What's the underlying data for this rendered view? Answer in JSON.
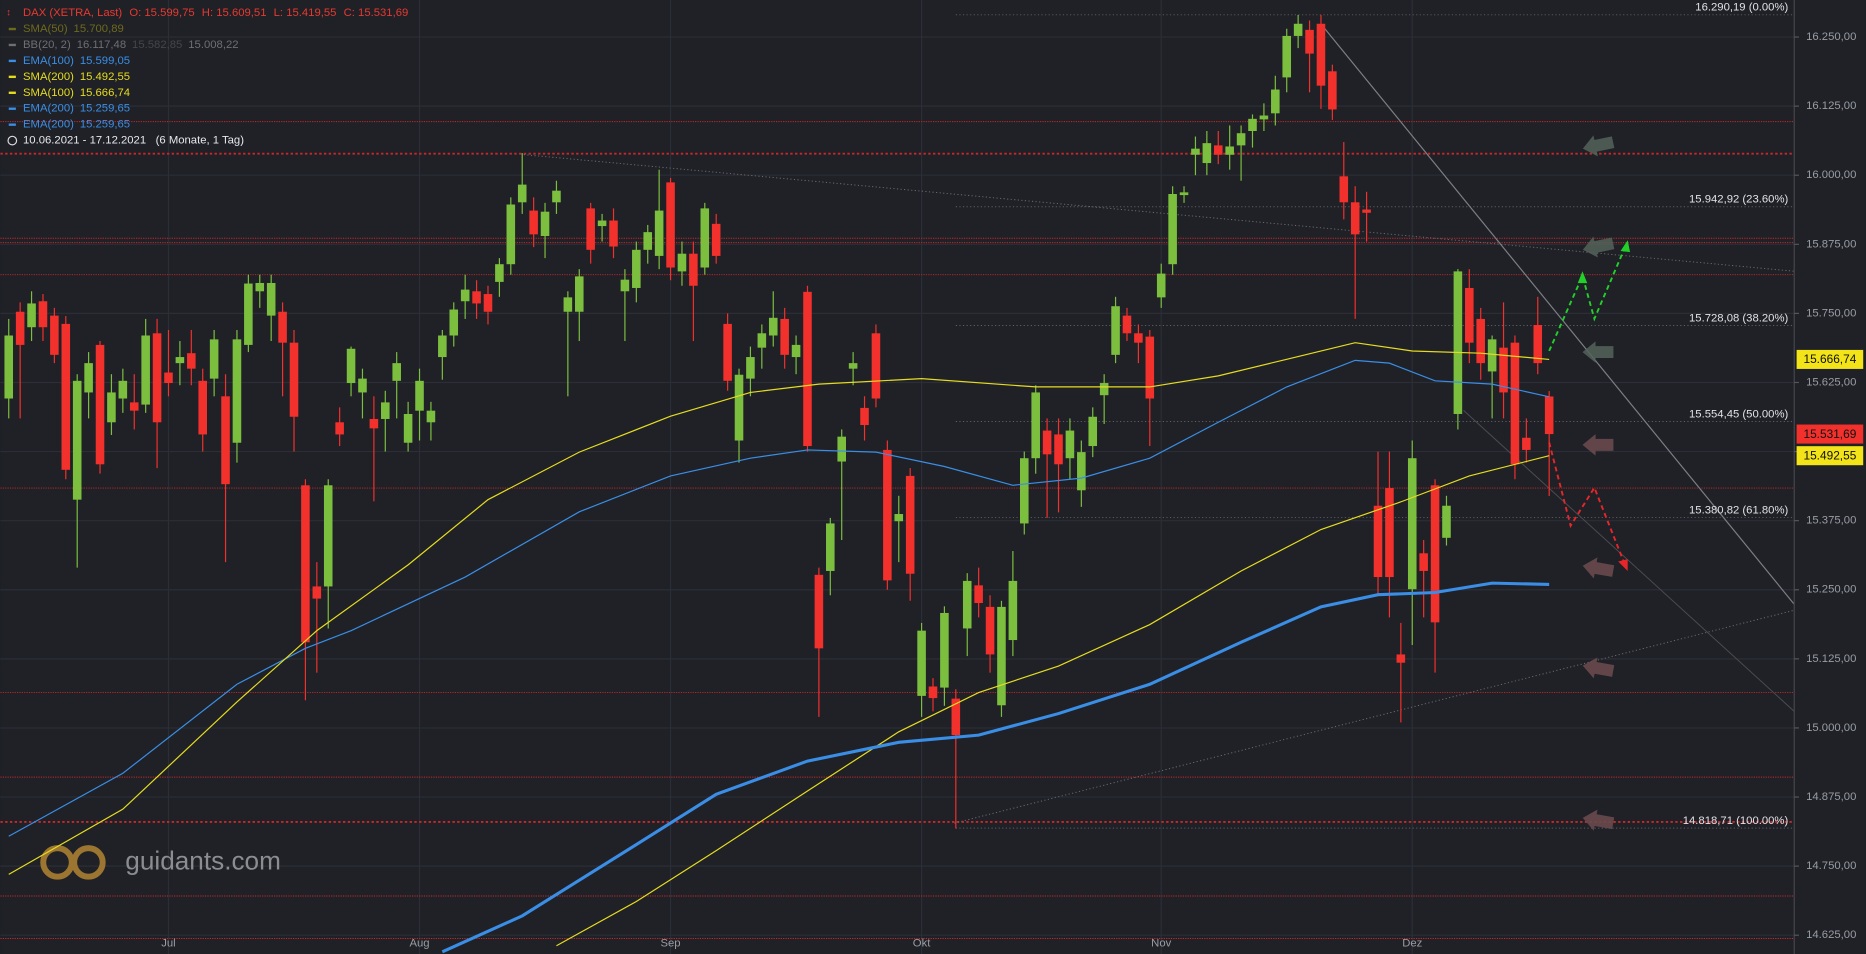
{
  "chart_data": {
    "type": "candlestick",
    "header": {
      "name": "DAX (XETRA, Last)",
      "ohlc_labels": [
        "O: 15.599,75",
        "H: 15.609,51",
        "L: 15.419,55",
        "C: 15.531,69"
      ],
      "color": "#e8392f"
    },
    "date_range": "10.06.2021 - 17.12.2021",
    "period": "(6 Monate, 1 Tag)",
    "logo_text": "guidants.com",
    "up_color": "#7cbf3f",
    "down_color": "#f2302c",
    "ylim": [
      14591,
      16317
    ],
    "yticks": [
      {
        "value": 16250,
        "label": "16.250,00"
      },
      {
        "value": 16125,
        "label": "16.125,00"
      },
      {
        "value": 16000,
        "label": "16.000,00"
      },
      {
        "value": 15875,
        "label": "15.875,00"
      },
      {
        "value": 15750,
        "label": "15.750,00"
      },
      {
        "value": 15625,
        "label": "15.625,00"
      },
      {
        "value": 15500,
        "label": "15.500,00"
      },
      {
        "value": 15375,
        "label": "15.375,00"
      },
      {
        "value": 15250,
        "label": "15.250,00"
      },
      {
        "value": 15125,
        "label": "15.125,00"
      },
      {
        "value": 15000,
        "label": "15.000,00"
      },
      {
        "value": 14875,
        "label": "14.875,00"
      },
      {
        "value": 14750,
        "label": "14.750,00"
      },
      {
        "value": 14625,
        "label": "14.625,00"
      }
    ],
    "grid": true,
    "categories": [
      null,
      null,
      null,
      null,
      null,
      null,
      null,
      null,
      null,
      null,
      null,
      null,
      null,
      null,
      "Jul",
      null,
      null,
      null,
      null,
      null,
      null,
      null,
      null,
      null,
      null,
      null,
      null,
      null,
      null,
      null,
      null,
      null,
      null,
      null,
      null,
      null,
      "Aug",
      null,
      null,
      null,
      null,
      null,
      null,
      null,
      null,
      null,
      null,
      null,
      null,
      null,
      null,
      null,
      null,
      null,
      null,
      null,
      null,
      null,
      "Sep",
      null,
      null,
      null,
      null,
      null,
      null,
      null,
      null,
      null,
      null,
      null,
      null,
      null,
      null,
      null,
      null,
      null,
      null,
      null,
      null,
      null,
      "Okt",
      null,
      null,
      null,
      null,
      null,
      null,
      null,
      null,
      null,
      null,
      null,
      null,
      null,
      null,
      null,
      null,
      null,
      null,
      null,
      null,
      "Nov",
      null,
      null,
      null,
      null,
      null,
      null,
      null,
      null,
      null,
      null,
      null,
      null,
      null,
      null,
      null,
      null,
      null,
      null,
      null,
      null,
      null,
      "Dez",
      null,
      null,
      null,
      null,
      null,
      null,
      null,
      null,
      null,
      null,
      null,
      null
    ],
    "ohlc": [
      [
        15596,
        15740,
        15560,
        15710
      ],
      [
        15753,
        15770,
        15560,
        15693
      ],
      [
        15725,
        15790,
        15700,
        15768
      ],
      [
        15772,
        15785,
        15700,
        15725
      ],
      [
        15746,
        15760,
        15660,
        15675
      ],
      [
        15731,
        15745,
        15450,
        15467
      ],
      [
        15413,
        15640,
        15290,
        15628
      ],
      [
        15607,
        15680,
        15560,
        15660
      ],
      [
        15693,
        15700,
        15460,
        15477
      ],
      [
        15553,
        15640,
        15530,
        15607
      ],
      [
        15596,
        15650,
        15570,
        15628
      ],
      [
        15589,
        15640,
        15540,
        15574
      ],
      [
        15585,
        15740,
        15570,
        15710
      ],
      [
        15714,
        15740,
        15470,
        15553
      ],
      [
        15643,
        15720,
        15600,
        15624
      ],
      [
        15660,
        15700,
        15620,
        15671
      ],
      [
        15678,
        15720,
        15620,
        15650
      ],
      [
        15628,
        15650,
        15500,
        15531
      ],
      [
        15632,
        15720,
        15600,
        15703
      ],
      [
        15600,
        15640,
        15300,
        15441
      ],
      [
        15516,
        15720,
        15480,
        15703
      ],
      [
        15693,
        15820,
        15680,
        15804
      ],
      [
        15790,
        15820,
        15760,
        15805
      ],
      [
        15746,
        15820,
        15700,
        15805
      ],
      [
        15753,
        15770,
        15600,
        15697
      ],
      [
        15697,
        15720,
        15500,
        15563
      ],
      [
        15439,
        15450,
        15050,
        15155
      ],
      [
        15256,
        15300,
        15100,
        15234
      ],
      [
        15256,
        15450,
        15180,
        15439
      ],
      [
        15553,
        15580,
        15510,
        15531
      ],
      [
        15624,
        15690,
        15600,
        15686
      ],
      [
        15607,
        15650,
        15560,
        15632
      ],
      [
        15559,
        15600,
        15410,
        15542
      ],
      [
        15559,
        15610,
        15500,
        15589
      ],
      [
        15628,
        15680,
        15560,
        15660
      ],
      [
        15516,
        15590,
        15500,
        15568
      ],
      [
        15574,
        15650,
        15520,
        15628
      ],
      [
        15553,
        15590,
        15520,
        15574
      ],
      [
        15671,
        15720,
        15630,
        15710
      ],
      [
        15710,
        15770,
        15690,
        15757
      ],
      [
        15772,
        15820,
        15740,
        15793
      ],
      [
        15790,
        15810,
        15740,
        15768
      ],
      [
        15785,
        15800,
        15730,
        15753
      ],
      [
        15807,
        15850,
        15780,
        15839
      ],
      [
        15839,
        15960,
        15820,
        15947
      ],
      [
        15951,
        16040,
        15930,
        15983
      ],
      [
        15936,
        15960,
        15870,
        15893
      ],
      [
        15890,
        15950,
        15850,
        15934
      ],
      [
        15951,
        15990,
        15930,
        15972
      ],
      [
        15753,
        15790,
        15600,
        15779
      ],
      [
        15753,
        15830,
        15700,
        15817
      ],
      [
        15940,
        15950,
        15840,
        15865
      ],
      [
        15908,
        15930,
        15880,
        15918
      ],
      [
        15918,
        15940,
        15850,
        15871
      ],
      [
        15790,
        15830,
        15700,
        15811
      ],
      [
        15796,
        15880,
        15770,
        15865
      ],
      [
        15865,
        15910,
        15840,
        15897
      ],
      [
        15854,
        16010,
        15830,
        15936
      ],
      [
        15987,
        15995,
        15810,
        15833
      ],
      [
        15826,
        15880,
        15800,
        15858
      ],
      [
        15858,
        15880,
        15700,
        15800
      ],
      [
        15833,
        15950,
        15820,
        15940
      ],
      [
        15912,
        15930,
        15840,
        15854
      ],
      [
        15731,
        15750,
        15610,
        15628
      ],
      [
        15520,
        15650,
        15480,
        15639
      ],
      [
        15632,
        15690,
        15600,
        15671
      ],
      [
        15688,
        15730,
        15650,
        15714
      ],
      [
        15710,
        15790,
        15690,
        15742
      ],
      [
        15740,
        15760,
        15650,
        15675
      ],
      [
        15671,
        15710,
        15640,
        15693
      ],
      [
        15789,
        15800,
        15500,
        15510
      ],
      [
        15277,
        15290,
        15020,
        15144
      ],
      [
        15284,
        15380,
        15240,
        15370
      ],
      [
        15482,
        15540,
        15340,
        15527
      ],
      [
        15650,
        15680,
        15620,
        15660
      ],
      [
        15579,
        15600,
        15520,
        15548
      ],
      [
        15714,
        15730,
        15580,
        15596
      ],
      [
        15503,
        15520,
        15250,
        15267
      ],
      [
        15374,
        15420,
        15300,
        15387
      ],
      [
        15456,
        15470,
        15230,
        15279
      ],
      [
        15058,
        15190,
        15020,
        15176
      ],
      [
        15075,
        15090,
        15030,
        15054
      ],
      [
        15073,
        15220,
        15040,
        15208
      ],
      [
        15053,
        15070,
        14818,
        14987
      ],
      [
        15180,
        15280,
        15130,
        15266
      ],
      [
        15258,
        15290,
        15200,
        15226
      ],
      [
        15219,
        15240,
        15100,
        15133
      ],
      [
        15041,
        15230,
        15020,
        15219
      ],
      [
        15159,
        15320,
        15130,
        15266
      ],
      [
        15370,
        15500,
        15350,
        15488
      ],
      [
        15488,
        15620,
        15460,
        15607
      ],
      [
        15538,
        15560,
        15380,
        15495
      ],
      [
        15531,
        15560,
        15390,
        15477
      ],
      [
        15488,
        15560,
        15450,
        15538
      ],
      [
        15430,
        15520,
        15400,
        15499
      ],
      [
        15510,
        15580,
        15490,
        15563
      ],
      [
        15602,
        15640,
        15550,
        15624
      ],
      [
        15675,
        15780,
        15660,
        15763
      ],
      [
        15746,
        15760,
        15700,
        15714
      ],
      [
        15714,
        15730,
        15660,
        15697
      ],
      [
        15708,
        15720,
        15510,
        15596
      ],
      [
        15779,
        15840,
        15760,
        15822
      ],
      [
        15839,
        15980,
        15820,
        15966
      ],
      [
        15964,
        15980,
        15950,
        15969
      ],
      [
        16037,
        16070,
        16000,
        16048
      ],
      [
        16022,
        16080,
        16000,
        16058
      ],
      [
        16054,
        16080,
        16020,
        16037
      ],
      [
        16037,
        16090,
        16010,
        16052
      ],
      [
        16054,
        16090,
        15990,
        16076
      ],
      [
        16080,
        16110,
        16050,
        16102
      ],
      [
        16101,
        16130,
        16080,
        16108
      ],
      [
        16112,
        16180,
        16090,
        16155
      ],
      [
        16177,
        16265,
        16150,
        16252
      ],
      [
        16252,
        16290,
        16230,
        16274
      ],
      [
        16263,
        16280,
        16150,
        16220
      ],
      [
        16274,
        16290,
        16120,
        16162
      ],
      [
        16188,
        16200,
        16100,
        16119
      ],
      [
        15998,
        16060,
        15920,
        15951
      ],
      [
        15951,
        15980,
        15740,
        15893
      ],
      [
        15938,
        15970,
        15880,
        15932
      ],
      [
        15402,
        15500,
        15240,
        15273
      ],
      [
        15434,
        15500,
        15200,
        15273
      ],
      [
        15133,
        15190,
        15010,
        15118
      ],
      [
        15251,
        15520,
        15150,
        15488
      ],
      [
        15316,
        15340,
        15200,
        15284
      ],
      [
        15439,
        15450,
        15100,
        15191
      ],
      [
        15344,
        15420,
        15330,
        15402
      ],
      [
        15568,
        15830,
        15540,
        15826
      ],
      [
        15796,
        15830,
        15660,
        15697
      ],
      [
        15740,
        15760,
        15630,
        15660
      ],
      [
        15645,
        15710,
        15560,
        15703
      ],
      [
        15688,
        15770,
        15560,
        15607
      ],
      [
        15697,
        15710,
        15450,
        15477
      ],
      [
        15525,
        15560,
        15480,
        15503
      ],
      [
        15729,
        15780,
        15640,
        15660
      ],
      [
        15599.75,
        15609.51,
        15419.55,
        15531.69
      ]
    ],
    "series": [
      {
        "name": "SMA(50)",
        "labels": [
          "15.700,89"
        ],
        "color": "#6e6a1c"
      },
      {
        "name": "BB(20, 2)",
        "labels": [
          "16.117,48",
          "15.582,85",
          "15.008,22"
        ],
        "color": "#6d6f75"
      },
      {
        "name": "EMA(100)",
        "labels": [
          "15.599,05"
        ],
        "color": "#3a8ee6",
        "line_width": 1,
        "x": [
          0,
          10,
          20,
          26,
          30,
          40,
          50,
          58,
          65,
          70,
          76,
          82,
          88,
          94,
          100,
          106,
          112,
          118,
          121,
          125,
          130,
          135
        ],
        "values": [
          14804,
          14918,
          15079,
          15144,
          15176,
          15273,
          15391,
          15456,
          15488,
          15503,
          15499,
          15473,
          15439,
          15452,
          15488,
          15553,
          15617,
          15665,
          15660,
          15628,
          15622,
          15599.05
        ]
      },
      {
        "name": "SMA(200)",
        "labels": [
          "15.492,55"
        ],
        "color": "#e6dc1e",
        "line_width": 1,
        "x": [
          48,
          55,
          62,
          70,
          78,
          85,
          92,
          100,
          108,
          115,
          122,
          128,
          135
        ],
        "values": [
          14606,
          14686,
          14778,
          14886,
          14993,
          15064,
          15112,
          15187,
          15284,
          15359,
          15409,
          15456,
          15492.55
        ]
      },
      {
        "name": "SMA(100)",
        "labels": [
          "15.666,74"
        ],
        "color": "#e6dc1e",
        "line_width": 1,
        "x": [
          0,
          10,
          20,
          27,
          35,
          42,
          50,
          58,
          65,
          71,
          80,
          90,
          100,
          106,
          112,
          118,
          123,
          129,
          135
        ],
        "values": [
          14735,
          14853,
          15047,
          15176,
          15295,
          15413,
          15499,
          15564,
          15607,
          15622,
          15632,
          15617,
          15617,
          15637,
          15667,
          15697,
          15682,
          15678,
          15666.74
        ]
      },
      {
        "name": "EMA(200)",
        "labels": [
          "15.259,65"
        ],
        "color": "#3a8ee6",
        "line_width": 2.6,
        "x": [
          38,
          45,
          55,
          62,
          70,
          78,
          85,
          92,
          100,
          108,
          115,
          120,
          125,
          130,
          135
        ],
        "values": [
          14595,
          14660,
          14789,
          14880,
          14940,
          14974,
          14987,
          15026,
          15079,
          15155,
          15219,
          15241,
          15245,
          15262,
          15259.65
        ]
      },
      {
        "name": "EMA(200)",
        "labels": [
          "15.259,65"
        ],
        "color": "#3a8ee6"
      }
    ],
    "badges": [
      {
        "value": 15666.74,
        "label": "15.666,74",
        "color": "#f2e418"
      },
      {
        "value": 15531.69,
        "label": "15.531,69",
        "color": "#f2302c"
      },
      {
        "value": 15492.55,
        "label": "15.492,55",
        "color": "#f2e418"
      }
    ],
    "fib_levels": [
      {
        "value": 16290.19,
        "label": "16.290,19 (0.00%)"
      },
      {
        "value": 15942.92,
        "label": "15.942,92 (23.60%)"
      },
      {
        "value": 15728.08,
        "label": "15.728,08 (38.20%)"
      },
      {
        "value": 15554.45,
        "label": "15.554,45 (50.00%)"
      },
      {
        "value": 15380.82,
        "label": "15.380,82 (61.80%)"
      },
      {
        "value": 14818.71,
        "label": "14.818,71 (100.00%)"
      }
    ],
    "levels": [
      {
        "value": 16097
      },
      {
        "value": 16039,
        "bold": true
      },
      {
        "value": 15886
      },
      {
        "value": 15878
      },
      {
        "value": 15820
      },
      {
        "value": 15434
      },
      {
        "value": 15064
      },
      {
        "value": 14911
      },
      {
        "value": 14830,
        "bold": true
      },
      {
        "value": 14696
      },
      {
        "value": 14619
      }
    ],
    "level_color": "#c8282a"
  }
}
